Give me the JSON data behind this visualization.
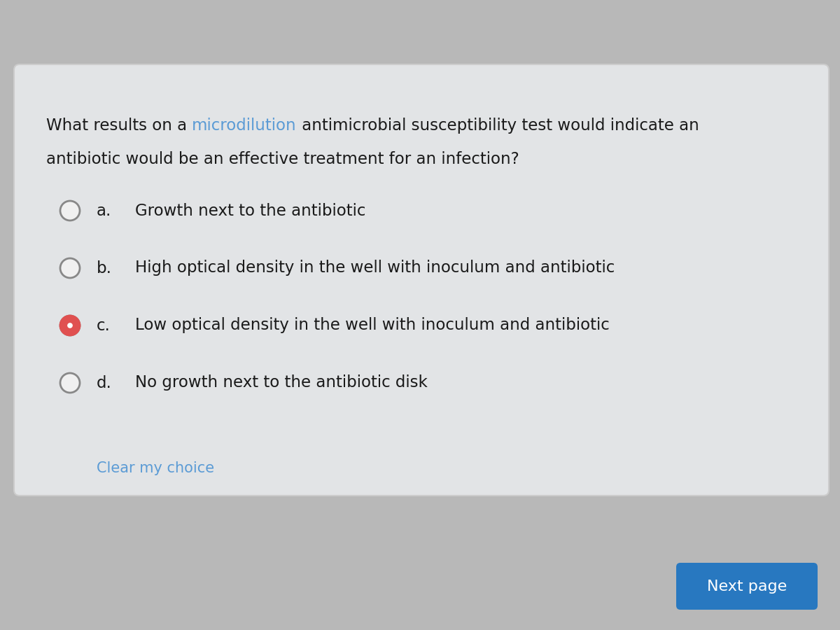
{
  "bg_outer": "#b8b8b8",
  "bg_card": "#e2e4e6",
  "question_prefix": "What results on a ",
  "question_micro": "microdilution",
  "question_suffix": " antimicrobial susceptibility test would indicate an",
  "question_line2": "antibiotic would be an effective treatment for an infection?",
  "microdilution_color": "#5b9bd5",
  "question_color": "#1a1a1a",
  "options": [
    {
      "letter": "a.",
      "text": "Growth next to the antibiotic",
      "selected": false
    },
    {
      "letter": "b.",
      "text": "High optical density in the well with inoculum and antibiotic",
      "selected": false
    },
    {
      "letter": "c.",
      "text": "Low optical density in the well with inoculum and antibiotic",
      "selected": true
    },
    {
      "letter": "d.",
      "text": "No growth next to the antibiotic disk",
      "selected": false
    }
  ],
  "radio_unsel_fill": "#f0f0f0",
  "radio_unsel_edge": "#888888",
  "radio_sel_fill": "#e05050",
  "radio_sel_edge": "#e05050",
  "radio_inner_fill": "#ffffff",
  "option_text_color": "#1a1a1a",
  "clear_choice_text": "Clear my choice",
  "clear_choice_color": "#5b9bd5",
  "next_button_text": "Next page",
  "next_button_bg": "#2878c0",
  "next_button_text_color": "#ffffff",
  "question_fontsize": 16.5,
  "option_fontsize": 16.5
}
